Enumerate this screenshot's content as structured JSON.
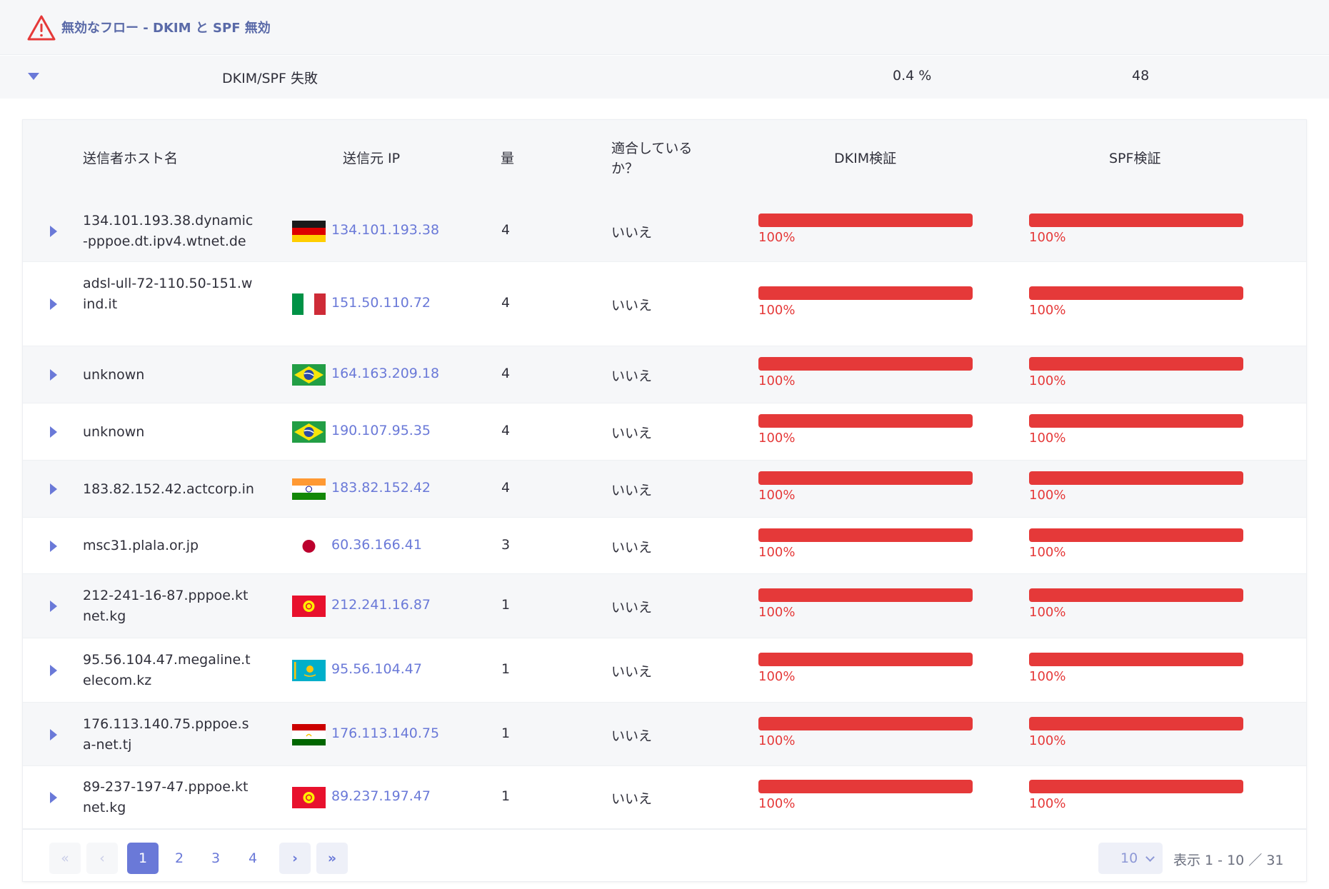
{
  "header": {
    "title": "無効なフロー - DKIM と SPF 無効",
    "icon": "warning-triangle-icon",
    "icon_color": "#e53939"
  },
  "summary": {
    "label": "DKIM/SPF 失敗",
    "percent": "0.4 %",
    "count": "48"
  },
  "table": {
    "columns": {
      "host": "送信者ホスト名",
      "ip": "送信元 IP",
      "volume": "量",
      "compliant": "適合しているか？",
      "dkim": "DKIM検証",
      "spf": "SPF検証"
    },
    "rows": [
      {
        "host": "134.101.193.38.dynamic-pppoe.dt.ipv4.wtnet.de",
        "flag": "germany-flag-icon",
        "ip": "134.101.193.38",
        "volume": "4",
        "compliant": "いいえ",
        "dkim": "100%",
        "spf": "100%"
      },
      {
        "host": "adsl-ull-72-110.50-151.wind.it",
        "flag": "italy-flag-icon",
        "ip": "151.50.110.72",
        "volume": "4",
        "compliant": "いいえ",
        "dkim": "100%",
        "spf": "100%"
      },
      {
        "host": "unknown",
        "flag": "brazil-flag-icon",
        "ip": "164.163.209.18",
        "volume": "4",
        "compliant": "いいえ",
        "dkim": "100%",
        "spf": "100%"
      },
      {
        "host": "unknown",
        "flag": "brazil-flag-icon",
        "ip": "190.107.95.35",
        "volume": "4",
        "compliant": "いいえ",
        "dkim": "100%",
        "spf": "100%"
      },
      {
        "host": "183.82.152.42.actcorp.in",
        "flag": "india-flag-icon",
        "ip": "183.82.152.42",
        "volume": "4",
        "compliant": "いいえ",
        "dkim": "100%",
        "spf": "100%"
      },
      {
        "host": "msc31.plala.or.jp",
        "flag": "japan-flag-icon",
        "ip": "60.36.166.41",
        "volume": "3",
        "compliant": "いいえ",
        "dkim": "100%",
        "spf": "100%"
      },
      {
        "host": "212-241-16-87.pppoe.ktnet.kg",
        "flag": "kyrgyzstan-flag-icon",
        "ip": "212.241.16.87",
        "volume": "1",
        "compliant": "いいえ",
        "dkim": "100%",
        "spf": "100%"
      },
      {
        "host": "95.56.104.47.megaline.telecom.kz",
        "flag": "kazakhstan-flag-icon",
        "ip": "95.56.104.47",
        "volume": "1",
        "compliant": "いいえ",
        "dkim": "100%",
        "spf": "100%"
      },
      {
        "host": "176.113.140.75.pppoe.sa-net.tj",
        "flag": "tajikistan-flag-icon",
        "ip": "176.113.140.75",
        "volume": "1",
        "compliant": "いいえ",
        "dkim": "100%",
        "spf": "100%"
      },
      {
        "host": "89-237-197-47.pppoe.ktnet.kg",
        "flag": "kyrgyzstan-flag-icon",
        "ip": "89.237.197.47",
        "volume": "1",
        "compliant": "いいえ",
        "dkim": "100%",
        "spf": "100%"
      }
    ]
  },
  "pagination": {
    "first": "«",
    "prev": "‹",
    "pages": [
      "1",
      "2",
      "3",
      "4"
    ],
    "current": "1",
    "next": "›",
    "last": "»",
    "per_page": "10",
    "range_text": "表示 1 - 10 ／ 31"
  },
  "colors": {
    "accent": "#6a79d8",
    "fail": "#e53939"
  }
}
